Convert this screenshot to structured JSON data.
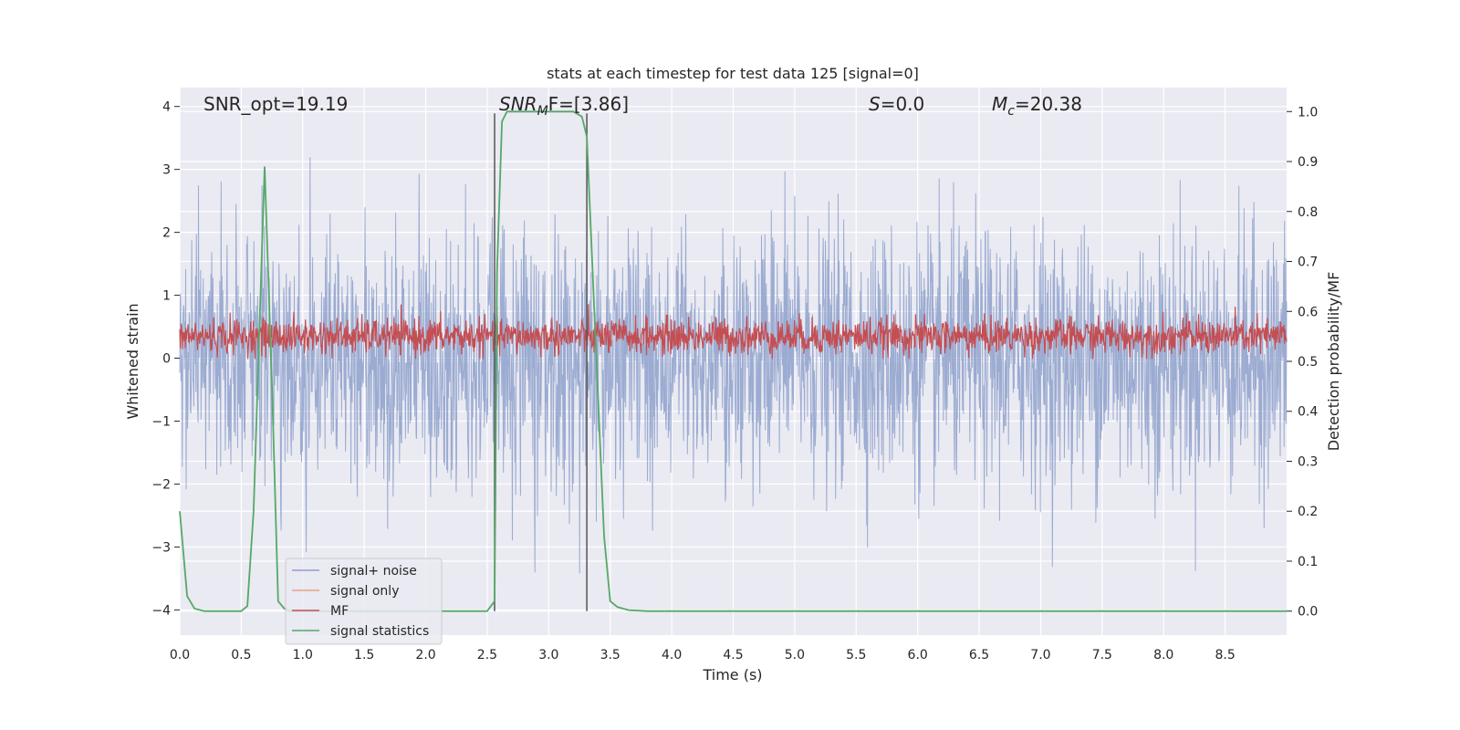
{
  "chart_data": {
    "type": "line",
    "title": "stats at each timestep for test data 125 [signal=0]",
    "xlabel": "Time (s)",
    "ylabel": "Whitened strain",
    "y2label": "Detection probability/MF",
    "xlim": [
      0,
      9.0
    ],
    "ylim": [
      -4.4,
      4.3
    ],
    "y2lim": [
      -0.048,
      1.048
    ],
    "grid": true,
    "legend_placement": "lower-left",
    "x_ticks": [
      "0.0",
      "0.5",
      "1.0",
      "1.5",
      "2.0",
      "2.5",
      "3.0",
      "3.5",
      "4.0",
      "4.5",
      "5.0",
      "5.5",
      "6.0",
      "6.5",
      "7.0",
      "7.5",
      "8.0",
      "8.5"
    ],
    "y_ticks": [
      "4",
      "3",
      "2",
      "1",
      "0",
      "−1",
      "−2",
      "−3",
      "−4"
    ],
    "y2_ticks": [
      "1.0",
      "0.9",
      "0.8",
      "0.7",
      "0.6",
      "0.5",
      "0.4",
      "0.3",
      "0.2",
      "0.1",
      "0.0"
    ],
    "annotations": {
      "snr_opt": "SNR_opt=19.19",
      "snr_mf_base": "SNR",
      "snr_mf_sub": "M",
      "snr_mf_rest": "F=[3.86]",
      "s_italic": "S",
      "s_rest": "=0.0",
      "mc_base": "M",
      "mc_sub": "c",
      "mc_rest": "=20.38"
    },
    "vertical_lines_x": [
      2.56,
      3.31
    ],
    "series": [
      {
        "name": "signal+ noise",
        "color": "#8da0cb",
        "description_range": [
          -4.0,
          3.9
        ]
      },
      {
        "name": "signal only",
        "color": "#e8a283"
      },
      {
        "name": "MF",
        "color": "#c44e52",
        "baseline_y2": 0.55
      },
      {
        "name": "signal statistics",
        "color": "#55a868",
        "points": [
          [
            0.0,
            0.2
          ],
          [
            0.06,
            0.03
          ],
          [
            0.12,
            0.005
          ],
          [
            0.2,
            0.0
          ],
          [
            0.5,
            0.0
          ],
          [
            0.55,
            0.01
          ],
          [
            0.6,
            0.2
          ],
          [
            0.69,
            0.89
          ],
          [
            0.75,
            0.45
          ],
          [
            0.8,
            0.02
          ],
          [
            0.85,
            0.005
          ],
          [
            0.9,
            0.0
          ],
          [
            2.5,
            0.0
          ],
          [
            2.56,
            0.02
          ],
          [
            2.58,
            0.68
          ],
          [
            2.62,
            0.98
          ],
          [
            2.66,
            1.0
          ],
          [
            3.2,
            1.0
          ],
          [
            3.27,
            0.99
          ],
          [
            3.31,
            0.95
          ],
          [
            3.38,
            0.55
          ],
          [
            3.45,
            0.15
          ],
          [
            3.5,
            0.02
          ],
          [
            3.56,
            0.008
          ],
          [
            3.65,
            0.002
          ],
          [
            3.8,
            0.0
          ],
          [
            9.0,
            0.0
          ]
        ]
      }
    ]
  },
  "colors": {
    "plot_bg": "#eaeaf2",
    "grid": "#ffffff",
    "noise": "#8da0cb",
    "mf": "#c44e52",
    "stats": "#55a868",
    "vline": "#555555"
  }
}
